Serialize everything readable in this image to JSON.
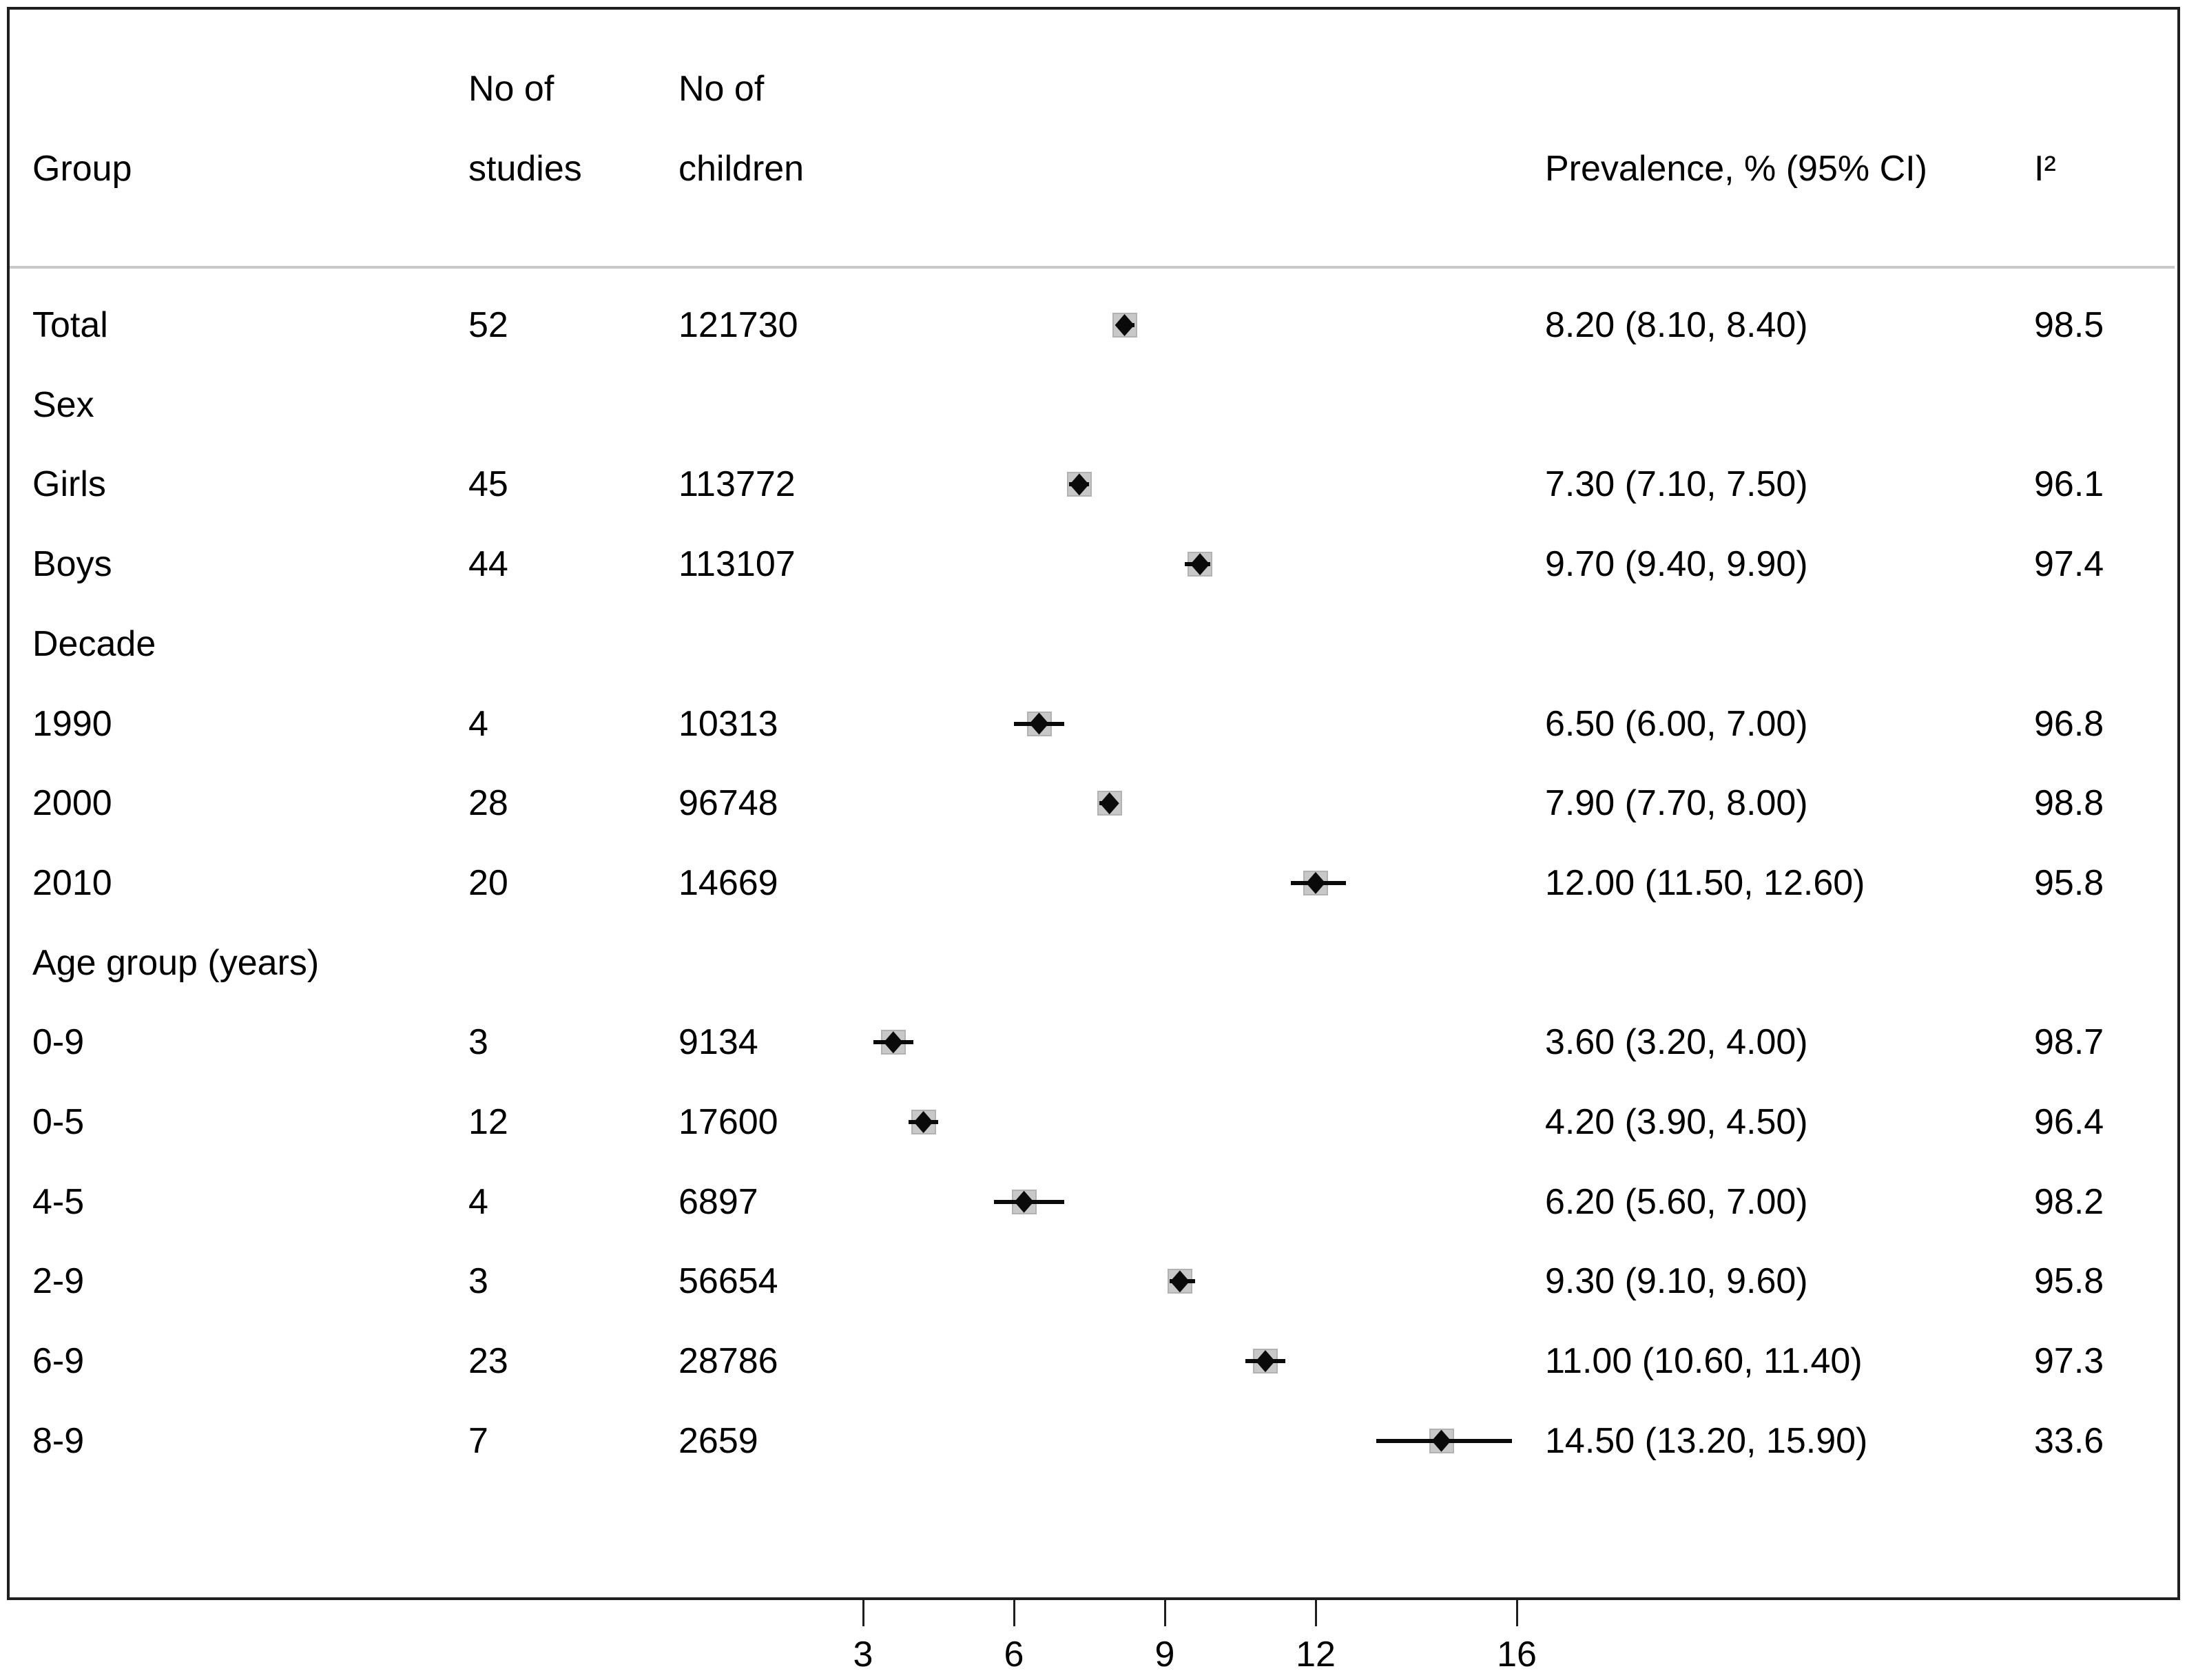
{
  "header": {
    "group": "Group",
    "studies_line1": "No of",
    "studies_line2": "studies",
    "children_line1": "No of",
    "children_line2": "children",
    "prevalence": "Prevalence, % (95% CI)",
    "i2": "I²"
  },
  "colors": {
    "text": "#000000",
    "frame_border": "#1f1f1f",
    "header_separator": "#c9c9c9",
    "weight_box_fill": "#c8c8c8",
    "weight_box_border": "#b2b2b2",
    "marker": "#0a0a0a"
  },
  "chart_data": {
    "type": "scatter",
    "variant": "forest-plot",
    "x_axis": {
      "tick_values": [
        3,
        6,
        9,
        12,
        16
      ],
      "tick_labels": [
        "3",
        "6",
        "9",
        "12",
        "16"
      ],
      "scale": "linear",
      "grid": false
    },
    "legend": "none",
    "rows": [
      {
        "label": "Total",
        "header": false,
        "studies": "52",
        "children": "121730",
        "est": 8.2,
        "lo": 8.1,
        "hi": 8.4,
        "ci_text": "8.20 (8.10, 8.40)",
        "i2": "98.5"
      },
      {
        "label": "Sex",
        "header": true
      },
      {
        "label": "Girls",
        "header": false,
        "studies": "45",
        "children": "113772",
        "est": 7.3,
        "lo": 7.1,
        "hi": 7.5,
        "ci_text": "7.30 (7.10, 7.50)",
        "i2": "96.1"
      },
      {
        "label": "Boys",
        "header": false,
        "studies": "44",
        "children": "113107",
        "est": 9.7,
        "lo": 9.4,
        "hi": 9.9,
        "ci_text": "9.70 (9.40, 9.90)",
        "i2": "97.4"
      },
      {
        "label": "Decade",
        "header": true
      },
      {
        "label": "1990",
        "header": false,
        "studies": "4",
        "children": "10313",
        "est": 6.5,
        "lo": 6.0,
        "hi": 7.0,
        "ci_text": "6.50 (6.00, 7.00)",
        "i2": "96.8"
      },
      {
        "label": "2000",
        "header": false,
        "studies": "28",
        "children": "96748",
        "est": 7.9,
        "lo": 7.7,
        "hi": 8.0,
        "ci_text": "7.90 (7.70, 8.00)",
        "i2": "98.8"
      },
      {
        "label": "2010",
        "header": false,
        "studies": "20",
        "children": "14669",
        "est": 12.0,
        "lo": 11.5,
        "hi": 12.6,
        "ci_text": "12.00 (11.50, 12.60)",
        "i2": "95.8"
      },
      {
        "label": "Age group (years)",
        "header": true
      },
      {
        "label": "0-9",
        "header": false,
        "studies": "3",
        "children": "9134",
        "est": 3.6,
        "lo": 3.2,
        "hi": 4.0,
        "ci_text": "3.60 (3.20, 4.00)",
        "i2": "98.7"
      },
      {
        "label": "0-5",
        "header": false,
        "studies": "12",
        "children": "17600",
        "est": 4.2,
        "lo": 3.9,
        "hi": 4.5,
        "ci_text": "4.20 (3.90, 4.50)",
        "i2": "96.4"
      },
      {
        "label": "4-5",
        "header": false,
        "studies": "4",
        "children": "6897",
        "est": 6.2,
        "lo": 5.6,
        "hi": 7.0,
        "ci_text": "6.20 (5.60, 7.00)",
        "i2": "98.2"
      },
      {
        "label": "2-9",
        "header": false,
        "studies": "3",
        "children": "56654",
        "est": 9.3,
        "lo": 9.1,
        "hi": 9.6,
        "ci_text": "9.30 (9.10, 9.60)",
        "i2": "95.8"
      },
      {
        "label": "6-9",
        "header": false,
        "studies": "23",
        "children": "28786",
        "est": 11.0,
        "lo": 10.6,
        "hi": 11.4,
        "ci_text": "11.00 (10.60, 11.40)",
        "i2": "97.3"
      },
      {
        "label": "8-9",
        "header": false,
        "studies": "7",
        "children": "2659",
        "est": 14.5,
        "lo": 13.2,
        "hi": 15.9,
        "ci_text": "14.50 (13.20, 15.90)",
        "i2": "33.6"
      }
    ]
  }
}
